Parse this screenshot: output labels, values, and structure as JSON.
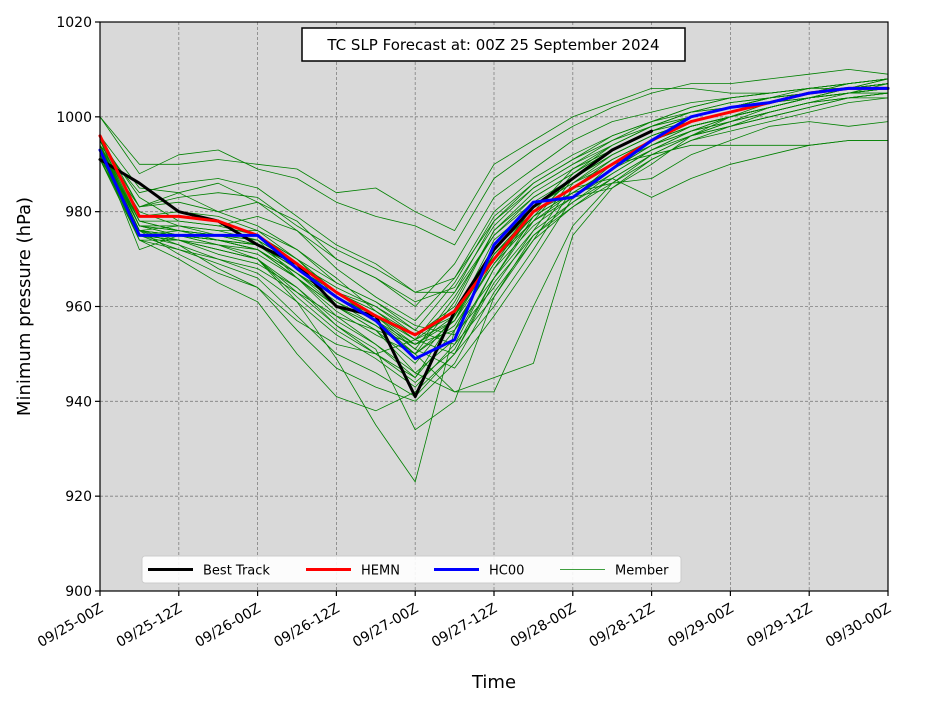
{
  "chart_data": {
    "type": "line",
    "title": "TC SLP Forecast at: 00Z 25 September 2024",
    "xlabel": "Time",
    "ylabel": "Minimum pressure (hPa)",
    "ylim": [
      900,
      1020
    ],
    "yticks": [
      900,
      920,
      940,
      960,
      980,
      1000,
      1020
    ],
    "x_hours": [
      0,
      6,
      12,
      18,
      24,
      30,
      36,
      42,
      48,
      54,
      60,
      66,
      72,
      78,
      84,
      90,
      96,
      102,
      108,
      114,
      120
    ],
    "xticks": [
      {
        "hour": 0,
        "label": "09/25-00Z"
      },
      {
        "hour": 12,
        "label": "09/25-12Z"
      },
      {
        "hour": 24,
        "label": "09/26-00Z"
      },
      {
        "hour": 36,
        "label": "09/26-12Z"
      },
      {
        "hour": 48,
        "label": "09/27-00Z"
      },
      {
        "hour": 60,
        "label": "09/27-12Z"
      },
      {
        "hour": 72,
        "label": "09/28-00Z"
      },
      {
        "hour": 84,
        "label": "09/28-12Z"
      },
      {
        "hour": 96,
        "label": "09/29-00Z"
      },
      {
        "hour": 108,
        "label": "09/29-12Z"
      },
      {
        "hour": 120,
        "label": "09/30-00Z"
      }
    ],
    "grid": true,
    "legend_position": "bottom-left",
    "colors": {
      "plot_background": "#d9d9d9",
      "grid": "#808080",
      "best_track": "#000000",
      "hemn": "#ff0000",
      "hc00": "#0000ff",
      "member": "#008000"
    },
    "series": [
      {
        "name": "Best Track",
        "color": "#000000",
        "width": 3,
        "values": [
          991,
          986,
          980,
          978,
          973,
          969,
          960,
          958,
          941,
          959,
          972,
          981,
          987,
          993,
          997
        ]
      },
      {
        "name": "HEMN",
        "color": "#ff0000",
        "width": 3,
        "values": [
          996,
          979,
          979,
          978,
          975,
          969,
          963,
          958,
          954,
          959,
          970,
          980,
          985,
          990,
          995,
          999,
          1001,
          1003,
          1005,
          1006,
          1006
        ]
      },
      {
        "name": "HC00",
        "color": "#0000ff",
        "width": 3,
        "values": [
          993,
          975,
          975,
          975,
          975,
          968,
          962,
          957,
          949,
          953,
          973,
          982,
          983,
          989,
          995,
          1000,
          1002,
          1003,
          1005,
          1006,
          1006
        ]
      },
      {
        "name": "Member",
        "color": "#008000",
        "width": 0.8,
        "values": [
          1000,
          990,
          990,
          991,
          990,
          989,
          984,
          985,
          980,
          976,
          990,
          995,
          1000,
          1003,
          1006,
          1006,
          1005,
          1005,
          1006,
          1007,
          1008
        ]
      },
      {
        "name": "",
        "color": "#008000",
        "width": 0.8,
        "values": [
          1000,
          988,
          992,
          993,
          989,
          987,
          982,
          979,
          977,
          973,
          987,
          993,
          998,
          1002,
          1005,
          1007,
          1007,
          1008,
          1009,
          1010,
          1009
        ]
      },
      {
        "name": "",
        "color": "#008000",
        "width": 0.8,
        "values": [
          996,
          985,
          984,
          980,
          982,
          978,
          970,
          966,
          960,
          969,
          983,
          989,
          995,
          999,
          1001,
          1003,
          1004,
          1005,
          1006,
          1007,
          1008
        ]
      },
      {
        "name": "",
        "color": "#008000",
        "width": 0.8,
        "values": [
          995,
          983,
          978,
          977,
          979,
          976,
          968,
          962,
          957,
          966,
          980,
          987,
          992,
          996,
          999,
          1001,
          1003,
          1004,
          1006,
          1006,
          1007
        ]
      },
      {
        "name": "",
        "color": "#008000",
        "width": 0.8,
        "values": [
          994,
          980,
          977,
          976,
          976,
          972,
          966,
          959,
          953,
          963,
          978,
          985,
          990,
          994,
          998,
          1000,
          1002,
          1004,
          1005,
          1006,
          1006
        ]
      },
      {
        "name": "",
        "color": "#008000",
        "width": 0.8,
        "values": [
          993,
          978,
          976,
          975,
          975,
          970,
          963,
          957,
          950,
          961,
          976,
          983,
          988,
          993,
          997,
          999,
          1001,
          1003,
          1004,
          1005,
          1005
        ]
      },
      {
        "name": "",
        "color": "#008000",
        "width": 0.8,
        "values": [
          992,
          976,
          975,
          973,
          972,
          967,
          960,
          955,
          948,
          958,
          974,
          981,
          986,
          991,
          995,
          998,
          1000,
          1002,
          1004,
          1005,
          1005
        ]
      },
      {
        "name": "",
        "color": "#008000",
        "width": 0.8,
        "values": [
          991,
          975,
          974,
          971,
          969,
          964,
          957,
          952,
          945,
          955,
          971,
          979,
          984,
          989,
          994,
          997,
          999,
          1001,
          1003,
          1004,
          1004
        ]
      },
      {
        "name": "",
        "color": "#008000",
        "width": 0.8,
        "values": [
          992,
          975,
          973,
          970,
          967,
          961,
          954,
          949,
          943,
          952,
          968,
          977,
          983,
          988,
          993,
          996,
          999,
          1001,
          1003,
          1004,
          1005
        ]
      },
      {
        "name": "",
        "color": "#008000",
        "width": 0.8,
        "values": [
          993,
          974,
          972,
          969,
          966,
          958,
          950,
          946,
          941,
          950,
          966,
          976,
          982,
          987,
          992,
          996,
          998,
          1000,
          1002,
          1004,
          1005
        ]
      },
      {
        "name": "",
        "color": "#008000",
        "width": 0.8,
        "values": [
          994,
          976,
          971,
          967,
          964,
          955,
          947,
          943,
          940,
          948,
          963,
          974,
          981,
          986,
          991,
          995,
          997,
          999,
          1001,
          1003,
          1004
        ]
      },
      {
        "name": "",
        "color": "#008000",
        "width": 0.8,
        "values": [
          992,
          974,
          974,
          972,
          970,
          962,
          955,
          950,
          945,
          958,
          972,
          980,
          985,
          990,
          994,
          997,
          1000,
          1002,
          1004,
          1005,
          1006
        ]
      },
      {
        "name": "",
        "color": "#008000",
        "width": 0.8,
        "values": [
          993,
          977,
          977,
          976,
          974,
          966,
          959,
          954,
          950,
          956,
          969,
          978,
          984,
          989,
          994,
          998,
          1000,
          1002,
          1004,
          1006,
          1007
        ]
      },
      {
        "name": "",
        "color": "#008000",
        "width": 0.8,
        "values": [
          991,
          979,
          980,
          979,
          976,
          970,
          962,
          957,
          951,
          962,
          975,
          982,
          987,
          992,
          996,
          999,
          1001,
          1003,
          1004,
          1006,
          1006
        ]
      },
      {
        "name": "",
        "color": "#008000",
        "width": 0.8,
        "values": [
          995,
          981,
          982,
          980,
          977,
          972,
          965,
          961,
          955,
          965,
          979,
          986,
          991,
          995,
          998,
          1001,
          1002,
          1004,
          1005,
          1006,
          1007
        ]
      },
      {
        "name": "",
        "color": "#008000",
        "width": 0.8,
        "values": [
          994,
          977,
          975,
          974,
          973,
          968,
          963,
          960,
          954,
          960,
          976,
          984,
          989,
          993,
          997,
          1000,
          1002,
          1004,
          1005,
          1006,
          1008
        ]
      },
      {
        "name": "",
        "color": "#008000",
        "width": 0.8,
        "values": [
          992,
          975,
          972,
          970,
          968,
          963,
          958,
          955,
          952,
          957,
          973,
          981,
          987,
          992,
          996,
          999,
          1001,
          1003,
          1004,
          1005,
          1006
        ]
      },
      {
        "name": "",
        "color": "#008000",
        "width": 0.8,
        "values": [
          991,
          974,
          970,
          965,
          961,
          950,
          941,
          938,
          942,
          950,
          965,
          975,
          981,
          987,
          992,
          996,
          998,
          1001,
          1003,
          1005,
          1006
        ]
      },
      {
        "name": "",
        "color": "#008000",
        "width": 0.8,
        "values": [
          992,
          976,
          973,
          968,
          964,
          957,
          952,
          950,
          953,
          957,
          971,
          980,
          985,
          990,
          994,
          998,
          1000,
          1002,
          1004,
          1006,
          1007
        ]
      },
      {
        "name": "",
        "color": "#008000",
        "width": 0.8,
        "values": [
          993,
          972,
          975,
          973,
          970,
          961,
          949,
          935,
          923,
          955,
          970,
          979,
          984,
          989,
          993,
          997,
          999,
          1002,
          1004,
          1005,
          1006
        ]
      },
      {
        "name": "",
        "color": "#008000",
        "width": 0.8,
        "values": [
          994,
          975,
          974,
          972,
          970,
          963,
          956,
          951,
          934,
          940,
          962,
          975,
          982,
          988,
          993,
          997,
          1000,
          1002,
          1004,
          1005,
          1006
        ]
      },
      {
        "name": "",
        "color": "#008000",
        "width": 0.8,
        "values": [
          995,
          978,
          976,
          974,
          972,
          966,
          960,
          955,
          946,
          942,
          942,
          960,
          977,
          986,
          992,
          996,
          999,
          1001,
          1003,
          1004,
          1005
        ]
      },
      {
        "name": "",
        "color": "#008000",
        "width": 0.8,
        "values": [
          993,
          976,
          975,
          974,
          972,
          967,
          961,
          956,
          950,
          942,
          945,
          948,
          975,
          985,
          991,
          995,
          998,
          1000,
          1002,
          1004,
          1005
        ]
      },
      {
        "name": "",
        "color": "#008000",
        "width": 0.8,
        "values": [
          994,
          977,
          975,
          974,
          973,
          968,
          962,
          958,
          951,
          947,
          958,
          970,
          983,
          990,
          995,
          998,
          1000,
          1002,
          1004,
          1005,
          1006
        ]
      },
      {
        "name": "",
        "color": "#008000",
        "width": 0.8,
        "values": [
          992,
          975,
          975,
          974,
          973,
          968,
          963,
          959,
          953,
          950,
          960,
          972,
          985,
          991,
          995,
          998,
          1000,
          1002,
          1004,
          1005,
          1007
        ]
      },
      {
        "name": "",
        "color": "#008000",
        "width": 0.8,
        "values": [
          993,
          976,
          977,
          975,
          974,
          969,
          964,
          960,
          955,
          952,
          962,
          974,
          986,
          992,
          996,
          999,
          1001,
          1003,
          1005,
          1006,
          1007
        ]
      },
      {
        "name": "",
        "color": "#008000",
        "width": 0.8,
        "values": [
          994,
          978,
          978,
          977,
          975,
          970,
          965,
          961,
          956,
          954,
          964,
          976,
          987,
          993,
          997,
          1000,
          1002,
          1004,
          1005,
          1006,
          1007
        ]
      },
      {
        "name": "",
        "color": "#008000",
        "width": 0.8,
        "values": [
          995,
          977,
          976,
          975,
          974,
          969,
          963,
          958,
          952,
          955,
          966,
          978,
          988,
          994,
          998,
          1001,
          1003,
          1004,
          1005,
          1007,
          1008
        ]
      },
      {
        "name": "",
        "color": "#008000",
        "width": 0.8,
        "values": [
          993,
          976,
          975,
          974,
          972,
          966,
          958,
          952,
          946,
          953,
          968,
          980,
          989,
          994,
          998,
          1001,
          1002,
          1004,
          1005,
          1006,
          1008
        ]
      },
      {
        "name": "",
        "color": "#008000",
        "width": 0.8,
        "values": [
          992,
          975,
          974,
          972,
          970,
          964,
          956,
          950,
          944,
          951,
          966,
          979,
          987,
          992,
          996,
          999,
          1001,
          1003,
          1005,
          1006,
          1007
        ]
      },
      {
        "name": "",
        "color": "#008000",
        "width": 0.8,
        "values": [
          991,
          976,
          974,
          973,
          971,
          966,
          960,
          956,
          950,
          957,
          969,
          980,
          985,
          987,
          983,
          987,
          990,
          992,
          994,
          995,
          995
        ]
      },
      {
        "name": "",
        "color": "#008000",
        "width": 0.8,
        "values": [
          994,
          977,
          976,
          975,
          973,
          967,
          961,
          957,
          952,
          958,
          970,
          981,
          986,
          990,
          992,
          994,
          994,
          994,
          994,
          995,
          995
        ]
      },
      {
        "name": "",
        "color": "#008000",
        "width": 0.8,
        "values": [
          993,
          976,
          975,
          974,
          972,
          967,
          962,
          958,
          953,
          959,
          971,
          980,
          984,
          986,
          987,
          992,
          995,
          998,
          999,
          998,
          999
        ]
      },
      {
        "name": "",
        "color": "#008000",
        "width": 0.8,
        "values": [
          992,
          975,
          976,
          975,
          973,
          968,
          963,
          959,
          954,
          958,
          970,
          978,
          983,
          985,
          990,
          996,
          1000,
          1003,
          1005,
          1007,
          1008
        ]
      },
      {
        "name": "",
        "color": "#008000",
        "width": 0.8,
        "values": [
          996,
          981,
          984,
          986,
          982,
          976,
          970,
          966,
          961,
          964,
          977,
          985,
          990,
          995,
          999,
          1002,
          1004,
          1005,
          1006,
          1007,
          1008
        ]
      },
      {
        "name": "",
        "color": "#008000",
        "width": 0.8,
        "values": [
          994,
          984,
          986,
          987,
          985,
          979,
          973,
          969,
          963,
          963,
          975,
          983,
          988,
          993,
          997,
          1000,
          1002,
          1003,
          1005,
          1006,
          1007
        ]
      },
      {
        "name": "",
        "color": "#008000",
        "width": 0.8,
        "values": [
          993,
          981,
          983,
          984,
          983,
          977,
          972,
          968,
          963,
          966,
          978,
          986,
          991,
          996,
          999,
          1002,
          1004,
          1005,
          1006,
          1007,
          1008
        ]
      }
    ],
    "legend": [
      {
        "label": "Best Track",
        "color": "#000000",
        "width": 3
      },
      {
        "label": "HEMN",
        "color": "#ff0000",
        "width": 3
      },
      {
        "label": "HC00",
        "color": "#0000ff",
        "width": 3
      },
      {
        "label": "Member",
        "color": "#008000",
        "width": 0.8
      }
    ]
  }
}
